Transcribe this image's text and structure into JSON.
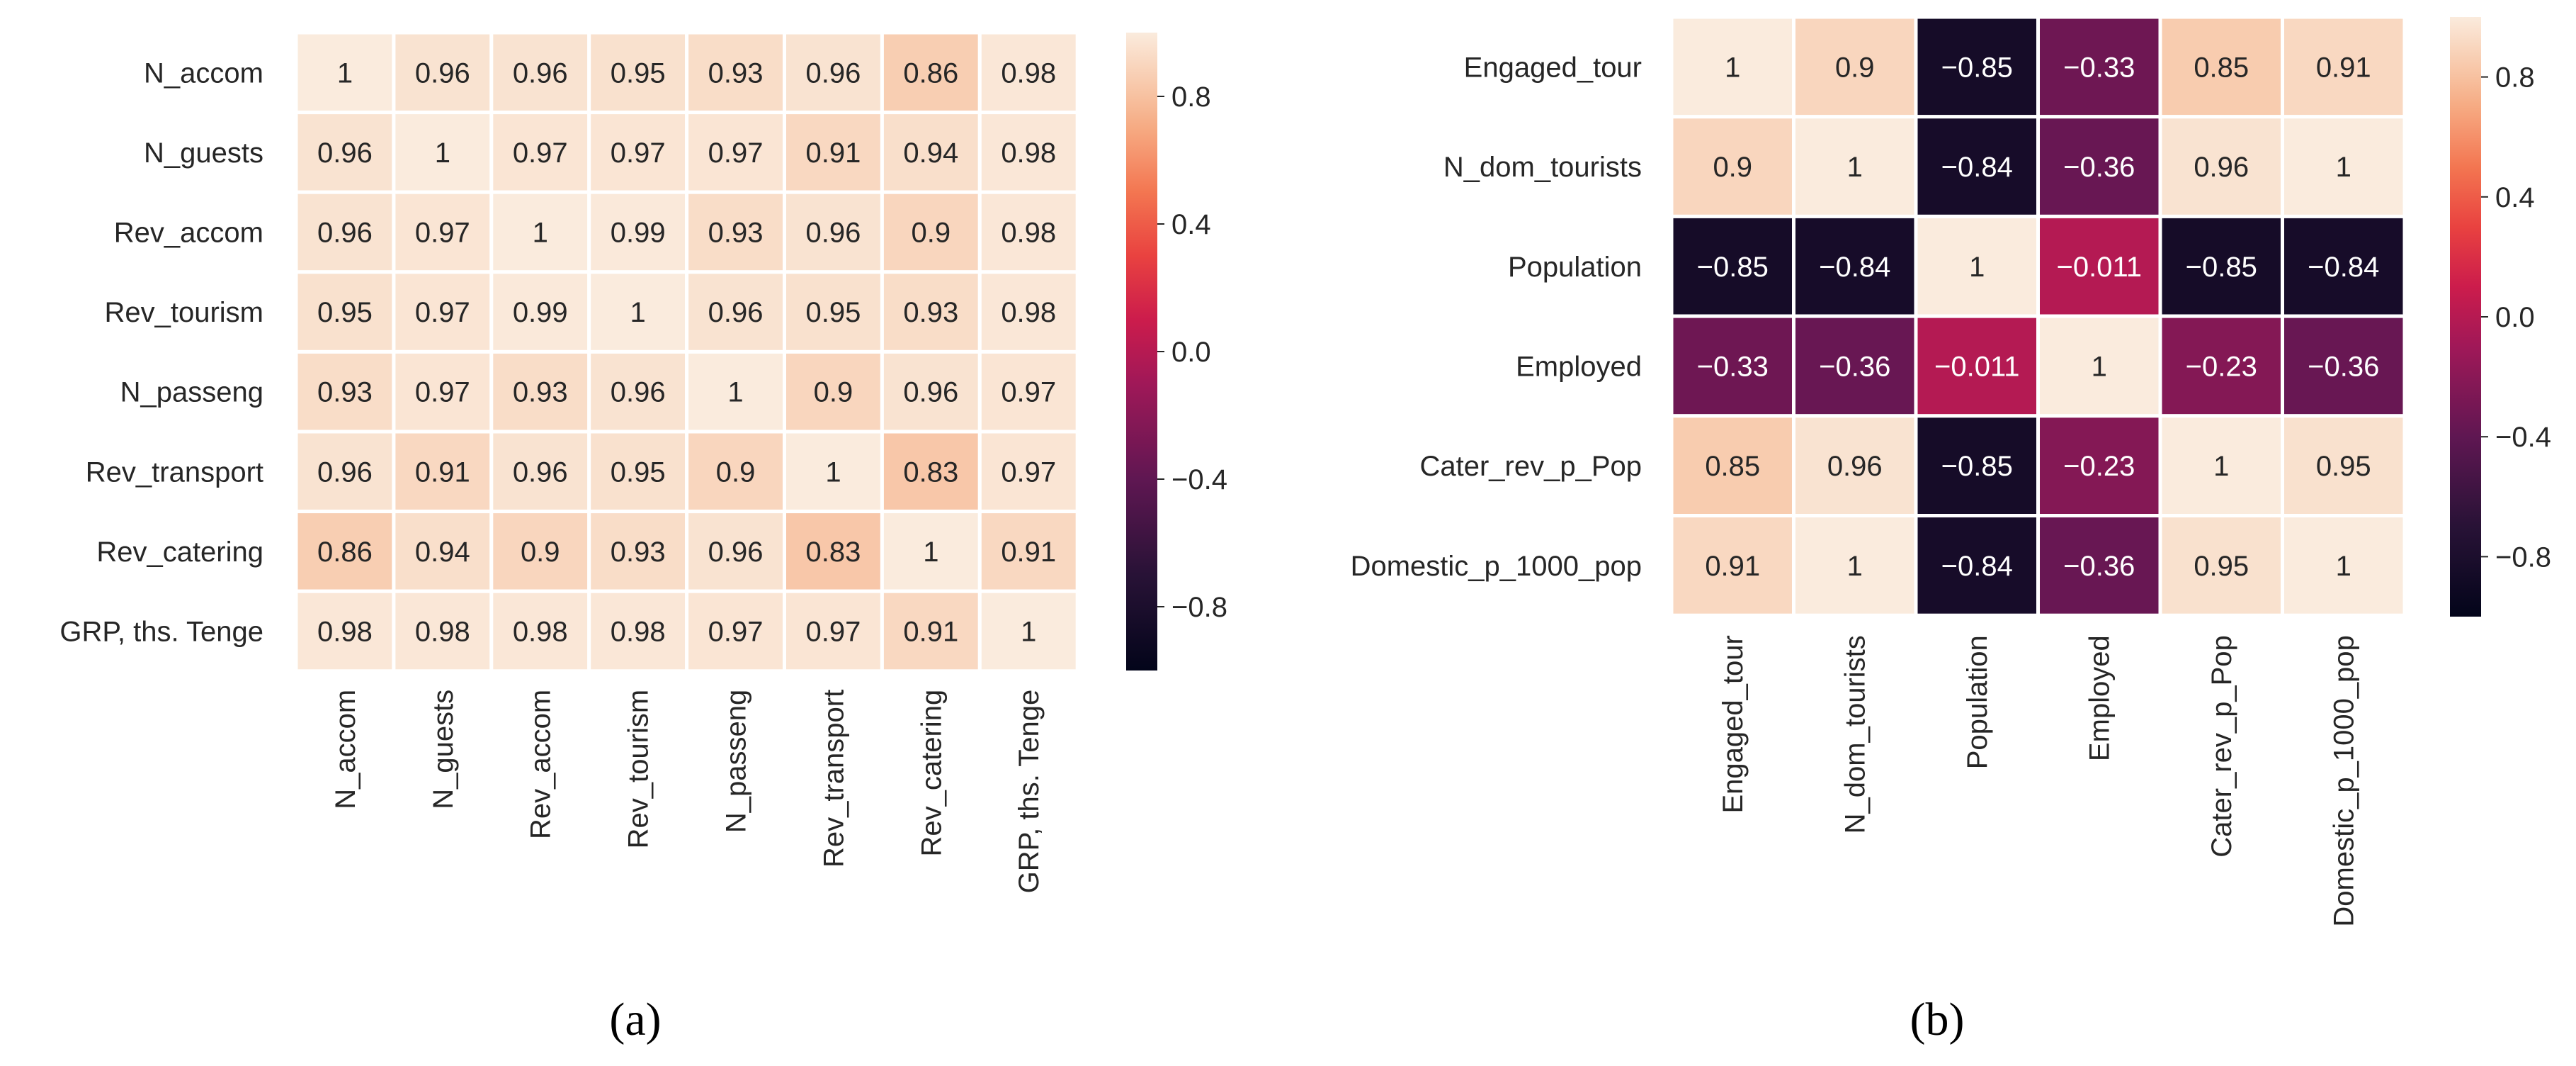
{
  "chart_data": [
    {
      "type": "heatmap",
      "panel_label": "(a)",
      "rows": [
        "N_accom",
        "N_guests",
        "Rev_accom",
        "Rev_tourism",
        "N_passeng",
        "Rev_transport",
        "Rev_catering",
        "GRP, ths. Tenge"
      ],
      "columns": [
        "N_accom",
        "N_guests",
        "Rev_accom",
        "Rev_tourism",
        "N_passeng",
        "Rev_transport",
        "Rev_catering",
        "GRP, ths. Tenge"
      ],
      "values": [
        [
          1,
          0.96,
          0.96,
          0.95,
          0.93,
          0.96,
          0.86,
          0.98
        ],
        [
          0.96,
          1,
          0.97,
          0.97,
          0.97,
          0.91,
          0.94,
          0.98
        ],
        [
          0.96,
          0.97,
          1,
          0.99,
          0.93,
          0.96,
          0.9,
          0.98
        ],
        [
          0.95,
          0.97,
          0.99,
          1,
          0.96,
          0.95,
          0.93,
          0.98
        ],
        [
          0.93,
          0.97,
          0.93,
          0.96,
          1,
          0.9,
          0.96,
          0.97
        ],
        [
          0.96,
          0.91,
          0.96,
          0.95,
          0.9,
          1,
          0.83,
          0.97
        ],
        [
          0.86,
          0.94,
          0.9,
          0.93,
          0.96,
          0.83,
          1,
          0.91
        ],
        [
          0.98,
          0.98,
          0.98,
          0.98,
          0.97,
          0.97,
          0.91,
          1
        ]
      ],
      "colorbar": {
        "min": -1,
        "max": 1,
        "ticks": [
          0.8,
          0.4,
          0.0,
          -0.4,
          -0.8
        ],
        "tick_labels": [
          "0.8",
          "0.4",
          "0.0",
          "−0.4",
          "−0.8"
        ]
      }
    },
    {
      "type": "heatmap",
      "panel_label": "(b)",
      "rows": [
        "Engaged_tour",
        "N_dom_tourists",
        "Population",
        "Employed",
        "Cater_rev_p_Pop",
        "Domestic_p_1000_pop"
      ],
      "columns": [
        "Engaged_tour",
        "N_dom_tourists",
        "Population",
        "Employed",
        "Cater_rev_p_Pop",
        "Domestic_p_1000_pop"
      ],
      "values": [
        [
          1,
          0.9,
          -0.85,
          -0.33,
          0.85,
          0.91
        ],
        [
          0.9,
          1,
          -0.84,
          -0.36,
          0.96,
          1
        ],
        [
          -0.85,
          -0.84,
          1,
          -0.011,
          -0.85,
          -0.84
        ],
        [
          -0.33,
          -0.36,
          -0.011,
          1,
          -0.23,
          -0.36
        ],
        [
          0.85,
          0.96,
          -0.85,
          -0.23,
          1,
          0.95
        ],
        [
          0.91,
          1,
          -0.84,
          -0.36,
          0.95,
          1
        ]
      ],
      "colorbar": {
        "min": -1,
        "max": 1,
        "ticks": [
          0.8,
          0.4,
          0.0,
          -0.4,
          -0.8
        ],
        "tick_labels": [
          "0.8",
          "0.4",
          "0.0",
          "−0.4",
          "−0.8"
        ]
      }
    }
  ]
}
